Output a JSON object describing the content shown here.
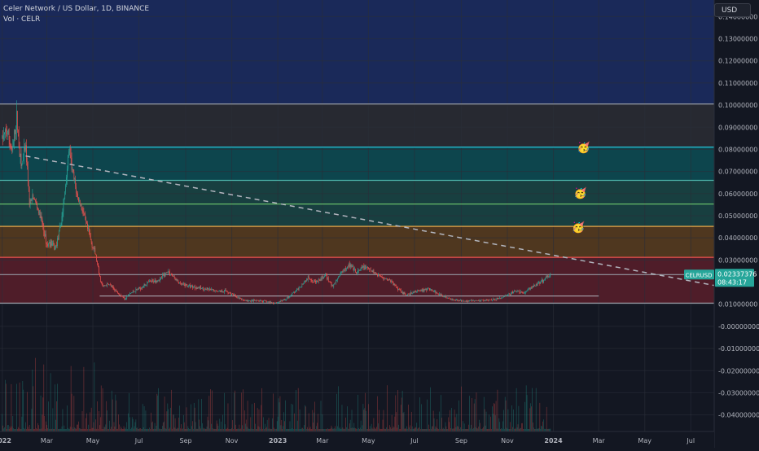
{
  "header": {
    "title": "Celer Network / US Dollar, 1D, BINANCE",
    "volume_label": "Vol · CELR",
    "currency_button": "USD"
  },
  "price_tag": {
    "symbol": "CELRUSD",
    "price": "0.02337376",
    "countdown": "08:43:17"
  },
  "colors": {
    "background": "#131722",
    "up": "#26a69a",
    "down": "#ef5350",
    "axis_text": "#b2b5be",
    "zone_top": "#1c2d63",
    "zone_gray": "#2b2d34",
    "zone_teal": "#0d4e55",
    "zone_green": "#1a4745",
    "zone_orange": "#5a3d1e",
    "zone_red": "#5a1e2a",
    "trendline": "#b2b5be"
  },
  "markers": [
    {
      "icon": "party-face-icon",
      "emoji": "🥳",
      "date": "2024-02-10",
      "price": 0.081
    },
    {
      "icon": "party-face-icon",
      "emoji": "🥳",
      "date": "2024-02-06",
      "price": 0.0605
    },
    {
      "icon": "party-face-icon",
      "emoji": "🥳",
      "date": "2024-02-03",
      "price": 0.045
    }
  ],
  "chart_data": {
    "type": "candlestick",
    "title": "Celer Network / US Dollar, 1D, BINANCE",
    "x_range": [
      "2021-12-29",
      "2024-08-01"
    ],
    "y_range": [
      -0.0475,
      0.1475
    ],
    "x_ticks": [
      {
        "label": "2022",
        "date": "2022-01-01"
      },
      {
        "label": "Mar",
        "date": "2022-03-01"
      },
      {
        "label": "May",
        "date": "2022-05-01"
      },
      {
        "label": "Jul",
        "date": "2022-07-01"
      },
      {
        "label": "Sep",
        "date": "2022-09-01"
      },
      {
        "label": "Nov",
        "date": "2022-11-01"
      },
      {
        "label": "2023",
        "date": "2023-01-01"
      },
      {
        "label": "Mar",
        "date": "2023-03-01"
      },
      {
        "label": "May",
        "date": "2023-05-01"
      },
      {
        "label": "Jul",
        "date": "2023-07-01"
      },
      {
        "label": "Sep",
        "date": "2023-09-01"
      },
      {
        "label": "Nov",
        "date": "2023-11-01"
      },
      {
        "label": "2024",
        "date": "2024-01-01"
      },
      {
        "label": "Mar",
        "date": "2024-03-01"
      },
      {
        "label": "May",
        "date": "2024-05-01"
      },
      {
        "label": "Jul",
        "date": "2024-07-01"
      }
    ],
    "y_ticks": [
      {
        "label": "0.14000000",
        "value": 0.14
      },
      {
        "label": "0.13000000",
        "value": 0.13
      },
      {
        "label": "0.12000000",
        "value": 0.12
      },
      {
        "label": "0.11000000",
        "value": 0.11
      },
      {
        "label": "0.10000000",
        "value": 0.1
      },
      {
        "label": "0.09000000",
        "value": 0.09
      },
      {
        "label": "0.08000000",
        "value": 0.08
      },
      {
        "label": "0.07000000",
        "value": 0.07
      },
      {
        "label": "0.06000000",
        "value": 0.06
      },
      {
        "label": "0.05000000",
        "value": 0.05
      },
      {
        "label": "0.04000000",
        "value": 0.04
      },
      {
        "label": "0.03000000",
        "value": 0.03
      },
      {
        "label": "0.01000000",
        "value": 0.01
      },
      {
        "label": "-0.00000000",
        "value": 0.0
      },
      {
        "label": "-0.01000000",
        "value": -0.01
      },
      {
        "label": "-0.02000000",
        "value": -0.02
      },
      {
        "label": "-0.03000000",
        "value": -0.03
      },
      {
        "label": "-0.04000000",
        "value": -0.04
      }
    ],
    "zones": [
      {
        "from": 0.1005,
        "to": 0.1475,
        "color": "zone_top"
      },
      {
        "from": 0.081,
        "to": 0.1005,
        "color": "zone_gray"
      },
      {
        "from": 0.066,
        "to": 0.081,
        "color": "zone_teal"
      },
      {
        "from": 0.0553,
        "to": 0.066,
        "color": "zone_green"
      },
      {
        "from": 0.0452,
        "to": 0.0553,
        "color": "zone_green"
      },
      {
        "from": 0.0312,
        "to": 0.0452,
        "color": "zone_orange"
      },
      {
        "from": 0.0105,
        "to": 0.0312,
        "color": "zone_red"
      }
    ],
    "levels": [
      {
        "value": 0.1005,
        "color": "#9598a1"
      },
      {
        "value": 0.081,
        "color": "#26c6da"
      },
      {
        "value": 0.066,
        "color": "#4db6ac"
      },
      {
        "value": 0.0553,
        "color": "#66bb6a"
      },
      {
        "value": 0.0452,
        "color": "#ffb74d"
      },
      {
        "value": 0.0312,
        "color": "#ef5350"
      },
      {
        "value": 0.0234,
        "color": "#9598a1"
      },
      {
        "value": 0.0105,
        "color": "#9598a1"
      }
    ],
    "support_line": {
      "start": "2022-05-10",
      "end": "2024-03-01",
      "value": 0.0137
    },
    "trendline": {
      "points": [
        [
          "2022-02-01",
          0.077
        ],
        [
          "2024-08-01",
          0.0185
        ]
      ],
      "style": "dashed"
    },
    "price_path": [
      [
        "2022-01-01",
        0.085
      ],
      [
        "2022-01-08",
        0.088
      ],
      [
        "2022-01-14",
        0.078
      ],
      [
        "2022-01-20",
        0.094
      ],
      [
        "2022-01-26",
        0.072
      ],
      [
        "2022-02-01",
        0.08
      ],
      [
        "2022-02-06",
        0.056
      ],
      [
        "2022-02-12",
        0.058
      ],
      [
        "2022-02-18",
        0.052
      ],
      [
        "2022-02-24",
        0.045
      ],
      [
        "2022-03-01",
        0.037
      ],
      [
        "2022-03-06",
        0.038
      ],
      [
        "2022-03-12",
        0.035
      ],
      [
        "2022-03-18",
        0.043
      ],
      [
        "2022-03-24",
        0.057
      ],
      [
        "2022-03-30",
        0.08
      ],
      [
        "2022-04-05",
        0.068
      ],
      [
        "2022-04-11",
        0.058
      ],
      [
        "2022-04-17",
        0.053
      ],
      [
        "2022-04-23",
        0.045
      ],
      [
        "2022-04-29",
        0.038
      ],
      [
        "2022-05-05",
        0.032
      ],
      [
        "2022-05-10",
        0.022
      ],
      [
        "2022-05-14",
        0.018
      ],
      [
        "2022-05-22",
        0.019
      ],
      [
        "2022-06-01",
        0.016
      ],
      [
        "2022-06-12",
        0.0125
      ],
      [
        "2022-06-20",
        0.015
      ],
      [
        "2022-07-01",
        0.017
      ],
      [
        "2022-07-15",
        0.02
      ],
      [
        "2022-07-28",
        0.021
      ],
      [
        "2022-08-08",
        0.025
      ],
      [
        "2022-08-14",
        0.023
      ],
      [
        "2022-08-25",
        0.019
      ],
      [
        "2022-09-10",
        0.018
      ],
      [
        "2022-09-25",
        0.017
      ],
      [
        "2022-10-10",
        0.016
      ],
      [
        "2022-10-25",
        0.016
      ],
      [
        "2022-11-08",
        0.013
      ],
      [
        "2022-11-20",
        0.0115
      ],
      [
        "2022-12-10",
        0.0115
      ],
      [
        "2022-12-28",
        0.0105
      ],
      [
        "2023-01-10",
        0.012
      ],
      [
        "2023-01-25",
        0.016
      ],
      [
        "2023-02-10",
        0.022
      ],
      [
        "2023-02-22",
        0.02
      ],
      [
        "2023-03-05",
        0.023
      ],
      [
        "2023-03-15",
        0.018
      ],
      [
        "2023-03-25",
        0.024
      ],
      [
        "2023-04-05",
        0.028
      ],
      [
        "2023-04-15",
        0.024
      ],
      [
        "2023-04-25",
        0.027
      ],
      [
        "2023-05-05",
        0.025
      ],
      [
        "2023-05-15",
        0.023
      ],
      [
        "2023-05-28",
        0.021
      ],
      [
        "2023-06-10",
        0.017
      ],
      [
        "2023-06-20",
        0.014
      ],
      [
        "2023-07-05",
        0.016
      ],
      [
        "2023-07-20",
        0.017
      ],
      [
        "2023-08-05",
        0.014
      ],
      [
        "2023-08-20",
        0.012
      ],
      [
        "2023-09-05",
        0.0115
      ],
      [
        "2023-09-20",
        0.0115
      ],
      [
        "2023-10-05",
        0.012
      ],
      [
        "2023-10-20",
        0.0125
      ],
      [
        "2023-11-01",
        0.014
      ],
      [
        "2023-11-12",
        0.016
      ],
      [
        "2023-11-22",
        0.015
      ],
      [
        "2023-12-05",
        0.018
      ],
      [
        "2023-12-15",
        0.02
      ],
      [
        "2023-12-28",
        0.0234
      ]
    ]
  }
}
